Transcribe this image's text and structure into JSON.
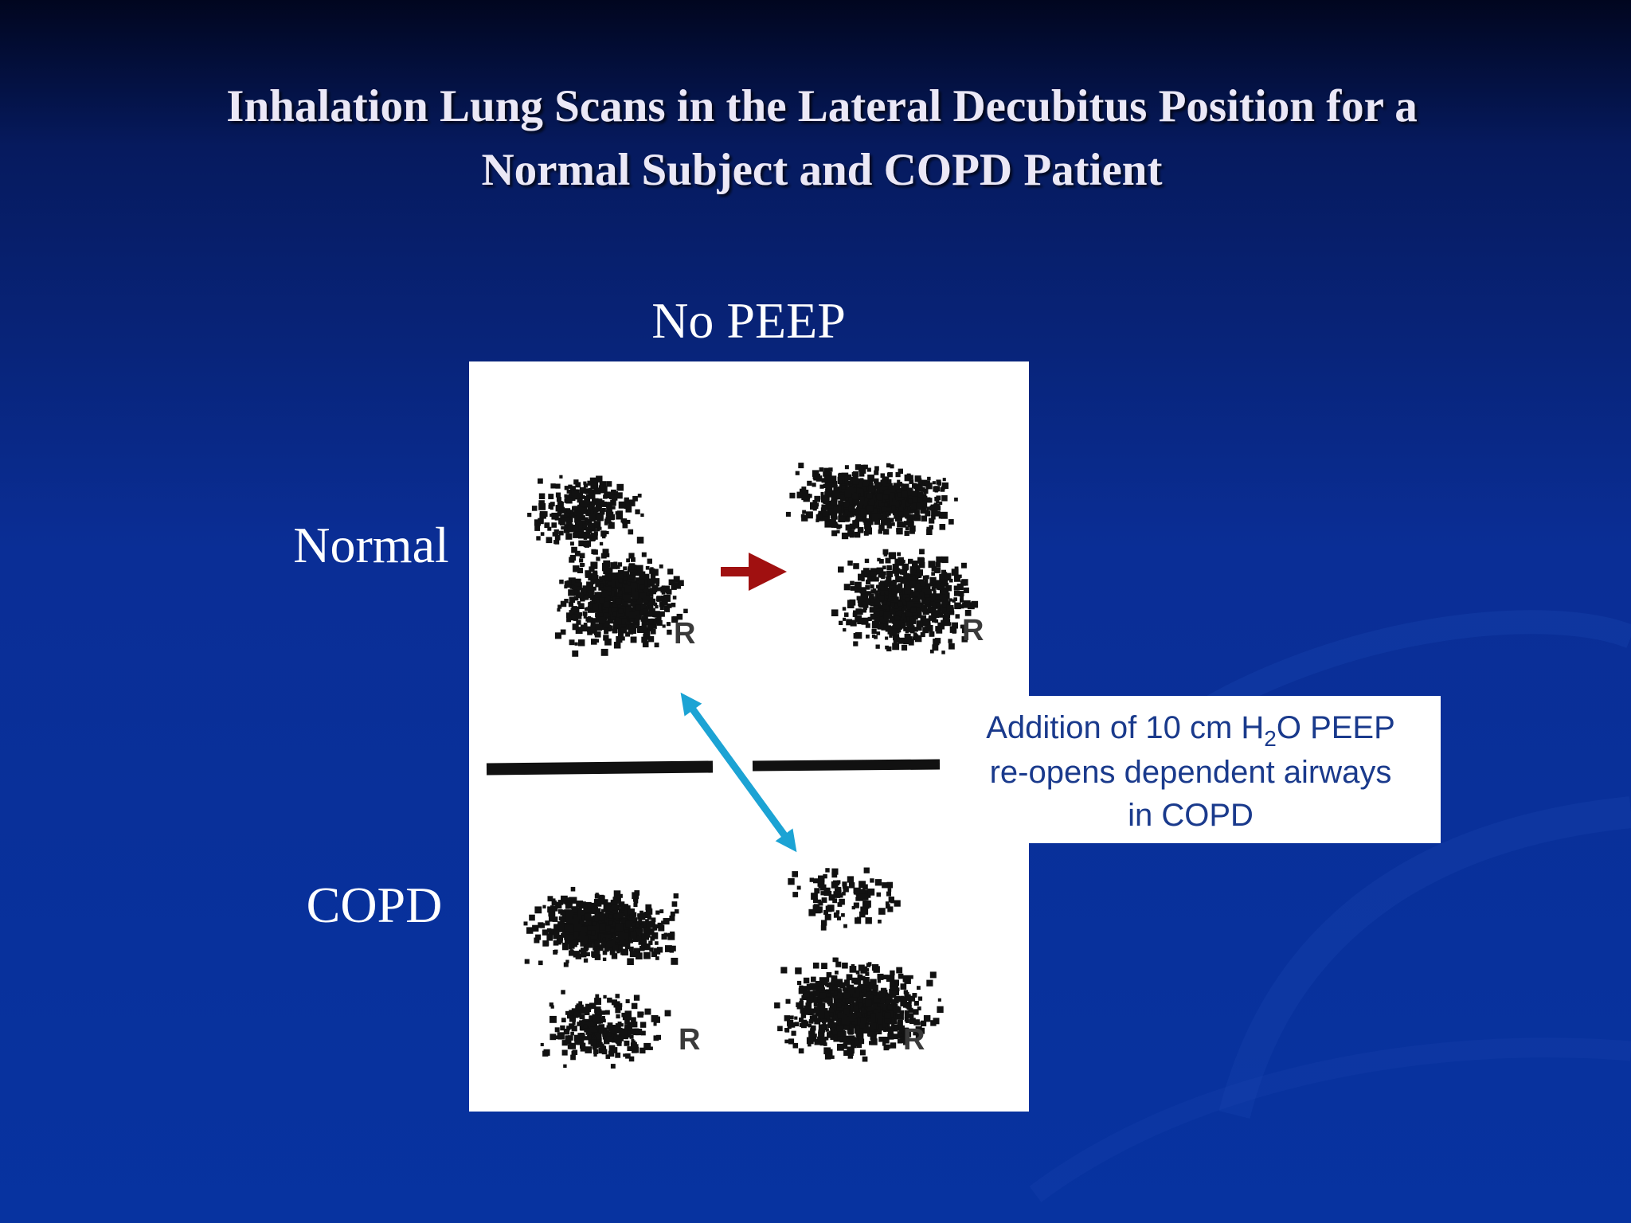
{
  "header": {
    "title_lines": [
      "Inhalation Lung Scans in the Lateral Decubitus Position for a",
      "Normal Subject and COPD Patient"
    ]
  },
  "figure": {
    "column_label": "No PEEP",
    "row_labels": [
      "Normal",
      "COPD"
    ],
    "scan_labels": [
      "R",
      "R",
      "R",
      "R"
    ]
  },
  "callout": {
    "line1_parts": [
      "Addition of 10 cm H",
      "2",
      "O PEEP"
    ],
    "line2": "re-opens dependent airways",
    "line3": "in COPD"
  }
}
